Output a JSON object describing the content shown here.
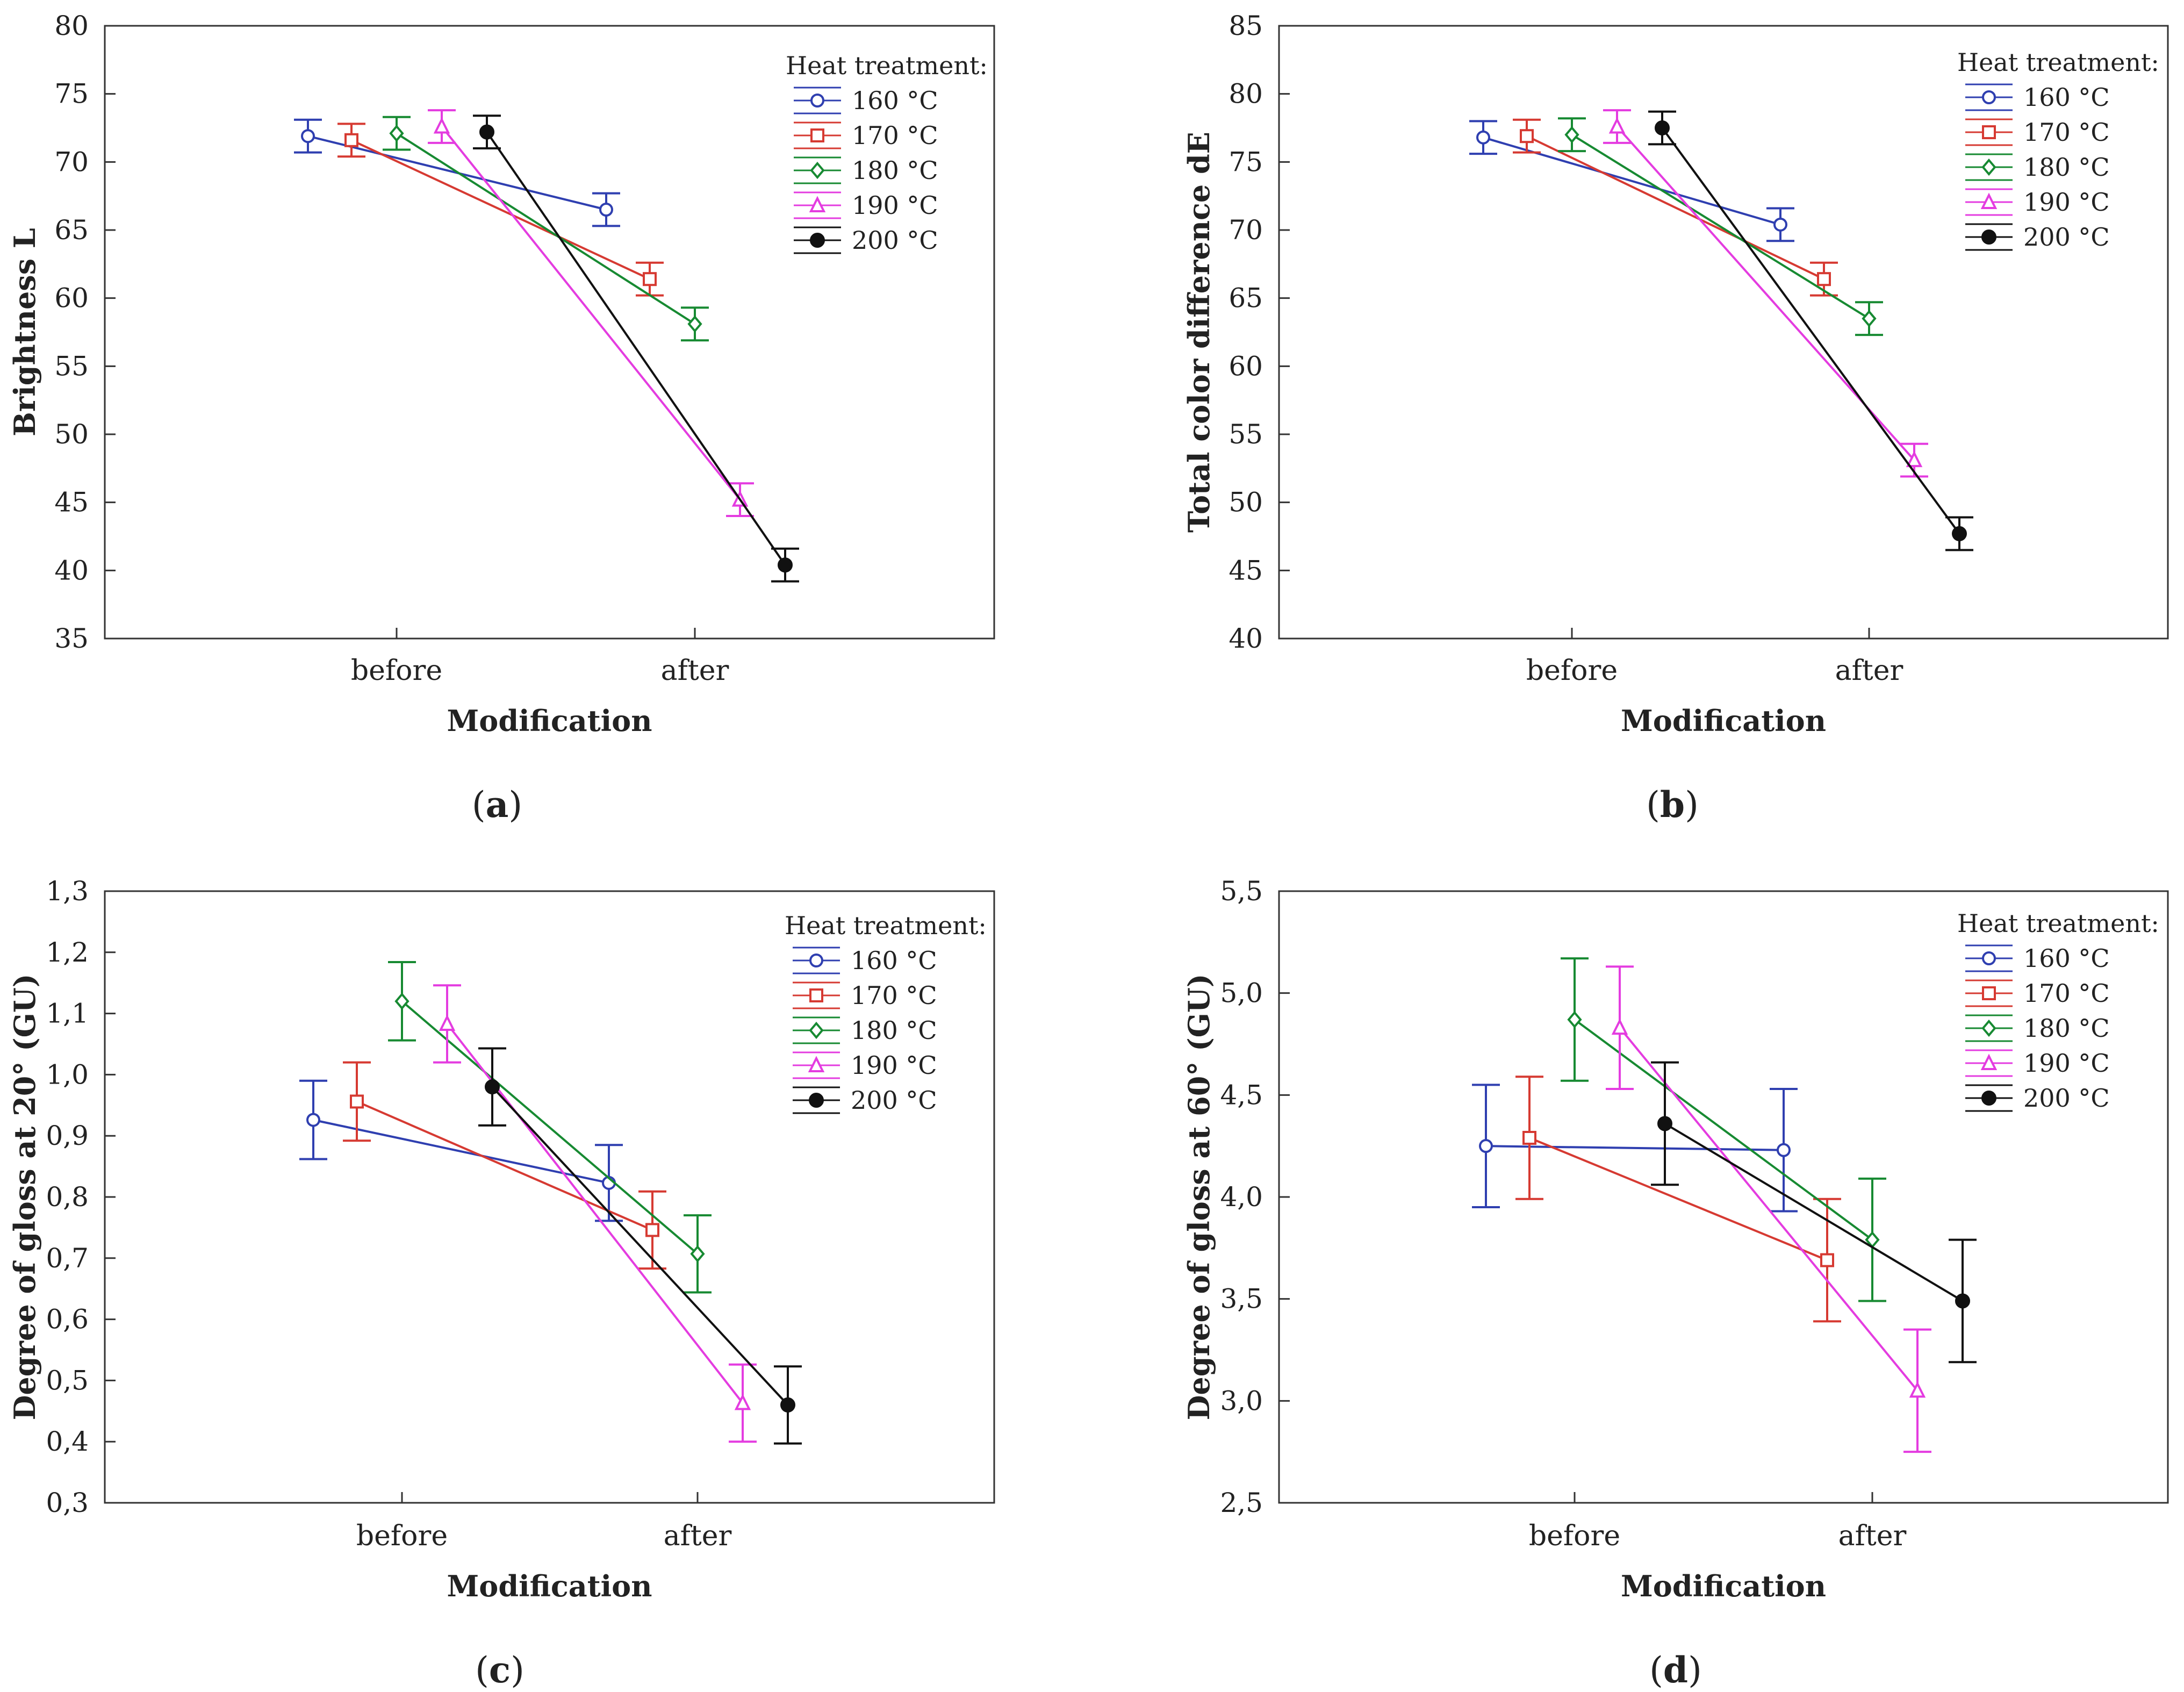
{
  "legend_title": "Heat treatment:",
  "chart_data": [
    {
      "id": "a",
      "panel_label": "a",
      "type": "line",
      "title": "",
      "xlabel": "Modification",
      "ylabel": "Brightness L",
      "categories": [
        "before",
        "after"
      ],
      "ylim": [
        35,
        80
      ],
      "yticks": [
        "35",
        "40",
        "45",
        "50",
        "55",
        "60",
        "65",
        "70",
        "75",
        "80"
      ],
      "legend_position": "top-right",
      "series": [
        {
          "name": "160 °C",
          "color": "#2f3fb0",
          "marker": "circle",
          "values": [
            71.9,
            66.5
          ],
          "err": [
            1.2,
            1.2
          ]
        },
        {
          "name": "170 °C",
          "color": "#d63a32",
          "marker": "square",
          "values": [
            71.6,
            61.4
          ],
          "err": [
            1.2,
            1.2
          ]
        },
        {
          "name": "180 °C",
          "color": "#178a32",
          "marker": "diamond",
          "values": [
            72.1,
            58.1
          ],
          "err": [
            1.2,
            1.2
          ]
        },
        {
          "name": "190 °C",
          "color": "#e43ce0",
          "marker": "triangle",
          "values": [
            72.6,
            45.2
          ],
          "err": [
            1.2,
            1.2
          ]
        },
        {
          "name": "200 °C",
          "color": "#111111",
          "marker": "dot",
          "values": [
            72.2,
            40.4
          ],
          "err": [
            1.2,
            1.2
          ]
        }
      ]
    },
    {
      "id": "b",
      "panel_label": "b",
      "type": "line",
      "title": "",
      "xlabel": "Modification",
      "ylabel": "Total color difference dE",
      "categories": [
        "before",
        "after"
      ],
      "ylim": [
        40,
        85
      ],
      "yticks": [
        "40",
        "45",
        "50",
        "55",
        "60",
        "65",
        "70",
        "75",
        "80",
        "85"
      ],
      "legend_position": "top-right",
      "series": [
        {
          "name": "160 °C",
          "color": "#2f3fb0",
          "marker": "circle",
          "values": [
            76.8,
            70.4
          ],
          "err": [
            1.2,
            1.2
          ]
        },
        {
          "name": "170 °C",
          "color": "#d63a32",
          "marker": "square",
          "values": [
            76.9,
            66.4
          ],
          "err": [
            1.2,
            1.2
          ]
        },
        {
          "name": "180 °C",
          "color": "#178a32",
          "marker": "diamond",
          "values": [
            77.0,
            63.5
          ],
          "err": [
            1.2,
            1.2
          ]
        },
        {
          "name": "190 °C",
          "color": "#e43ce0",
          "marker": "triangle",
          "values": [
            77.6,
            53.1
          ],
          "err": [
            1.2,
            1.2
          ]
        },
        {
          "name": "200 °C",
          "color": "#111111",
          "marker": "dot",
          "values": [
            77.5,
            47.7
          ],
          "err": [
            1.2,
            1.2
          ]
        }
      ]
    },
    {
      "id": "c",
      "panel_label": "c",
      "type": "line",
      "title": "",
      "xlabel": "Modification",
      "ylabel": "Degree of gloss at 20° (GU)",
      "categories": [
        "before",
        "after"
      ],
      "ylim": [
        0.3,
        1.3
      ],
      "yticks": [
        "0,3",
        "0,4",
        "0,5",
        "0,6",
        "0,7",
        "0,8",
        "0,9",
        "1,0",
        "1,1",
        "1,2",
        "1,3"
      ],
      "legend_position": "top-right",
      "series": [
        {
          "name": "160 °C",
          "color": "#2f3fb0",
          "marker": "circle",
          "values": [
            0.926,
            0.823
          ],
          "err": [
            0.064,
            0.062
          ]
        },
        {
          "name": "170 °C",
          "color": "#d63a32",
          "marker": "square",
          "values": [
            0.956,
            0.746
          ],
          "err": [
            0.064,
            0.063
          ]
        },
        {
          "name": "180 °C",
          "color": "#178a32",
          "marker": "diamond",
          "values": [
            1.12,
            0.707
          ],
          "err": [
            0.064,
            0.063
          ]
        },
        {
          "name": "190 °C",
          "color": "#e43ce0",
          "marker": "triangle",
          "values": [
            1.083,
            0.463
          ],
          "err": [
            0.063,
            0.063
          ]
        },
        {
          "name": "200 °C",
          "color": "#111111",
          "marker": "dot",
          "values": [
            0.98,
            0.46
          ],
          "err": [
            0.063,
            0.063
          ]
        }
      ]
    },
    {
      "id": "d",
      "panel_label": "d",
      "type": "line",
      "title": "",
      "xlabel": "Modification",
      "ylabel": "Degree of gloss at 60° (GU)",
      "categories": [
        "before",
        "after"
      ],
      "ylim": [
        2.5,
        5.5
      ],
      "yticks": [
        "2,5",
        "3,0",
        "3,5",
        "4,0",
        "4,5",
        "5,0",
        "5,5"
      ],
      "legend_position": "top-right",
      "series": [
        {
          "name": "160 °C",
          "color": "#2f3fb0",
          "marker": "circle",
          "values": [
            4.25,
            4.23
          ],
          "err": [
            0.3,
            0.3
          ]
        },
        {
          "name": "170 °C",
          "color": "#d63a32",
          "marker": "square",
          "values": [
            4.29,
            3.69
          ],
          "err": [
            0.3,
            0.3
          ]
        },
        {
          "name": "180 °C",
          "color": "#178a32",
          "marker": "diamond",
          "values": [
            4.87,
            3.79
          ],
          "err": [
            0.3,
            0.3
          ]
        },
        {
          "name": "190 °C",
          "color": "#e43ce0",
          "marker": "triangle",
          "values": [
            4.83,
            3.05
          ],
          "err": [
            0.3,
            0.3
          ]
        },
        {
          "name": "200 °C",
          "color": "#111111",
          "marker": "dot",
          "values": [
            4.36,
            3.49
          ],
          "err": [
            0.3,
            0.3
          ]
        }
      ]
    }
  ]
}
